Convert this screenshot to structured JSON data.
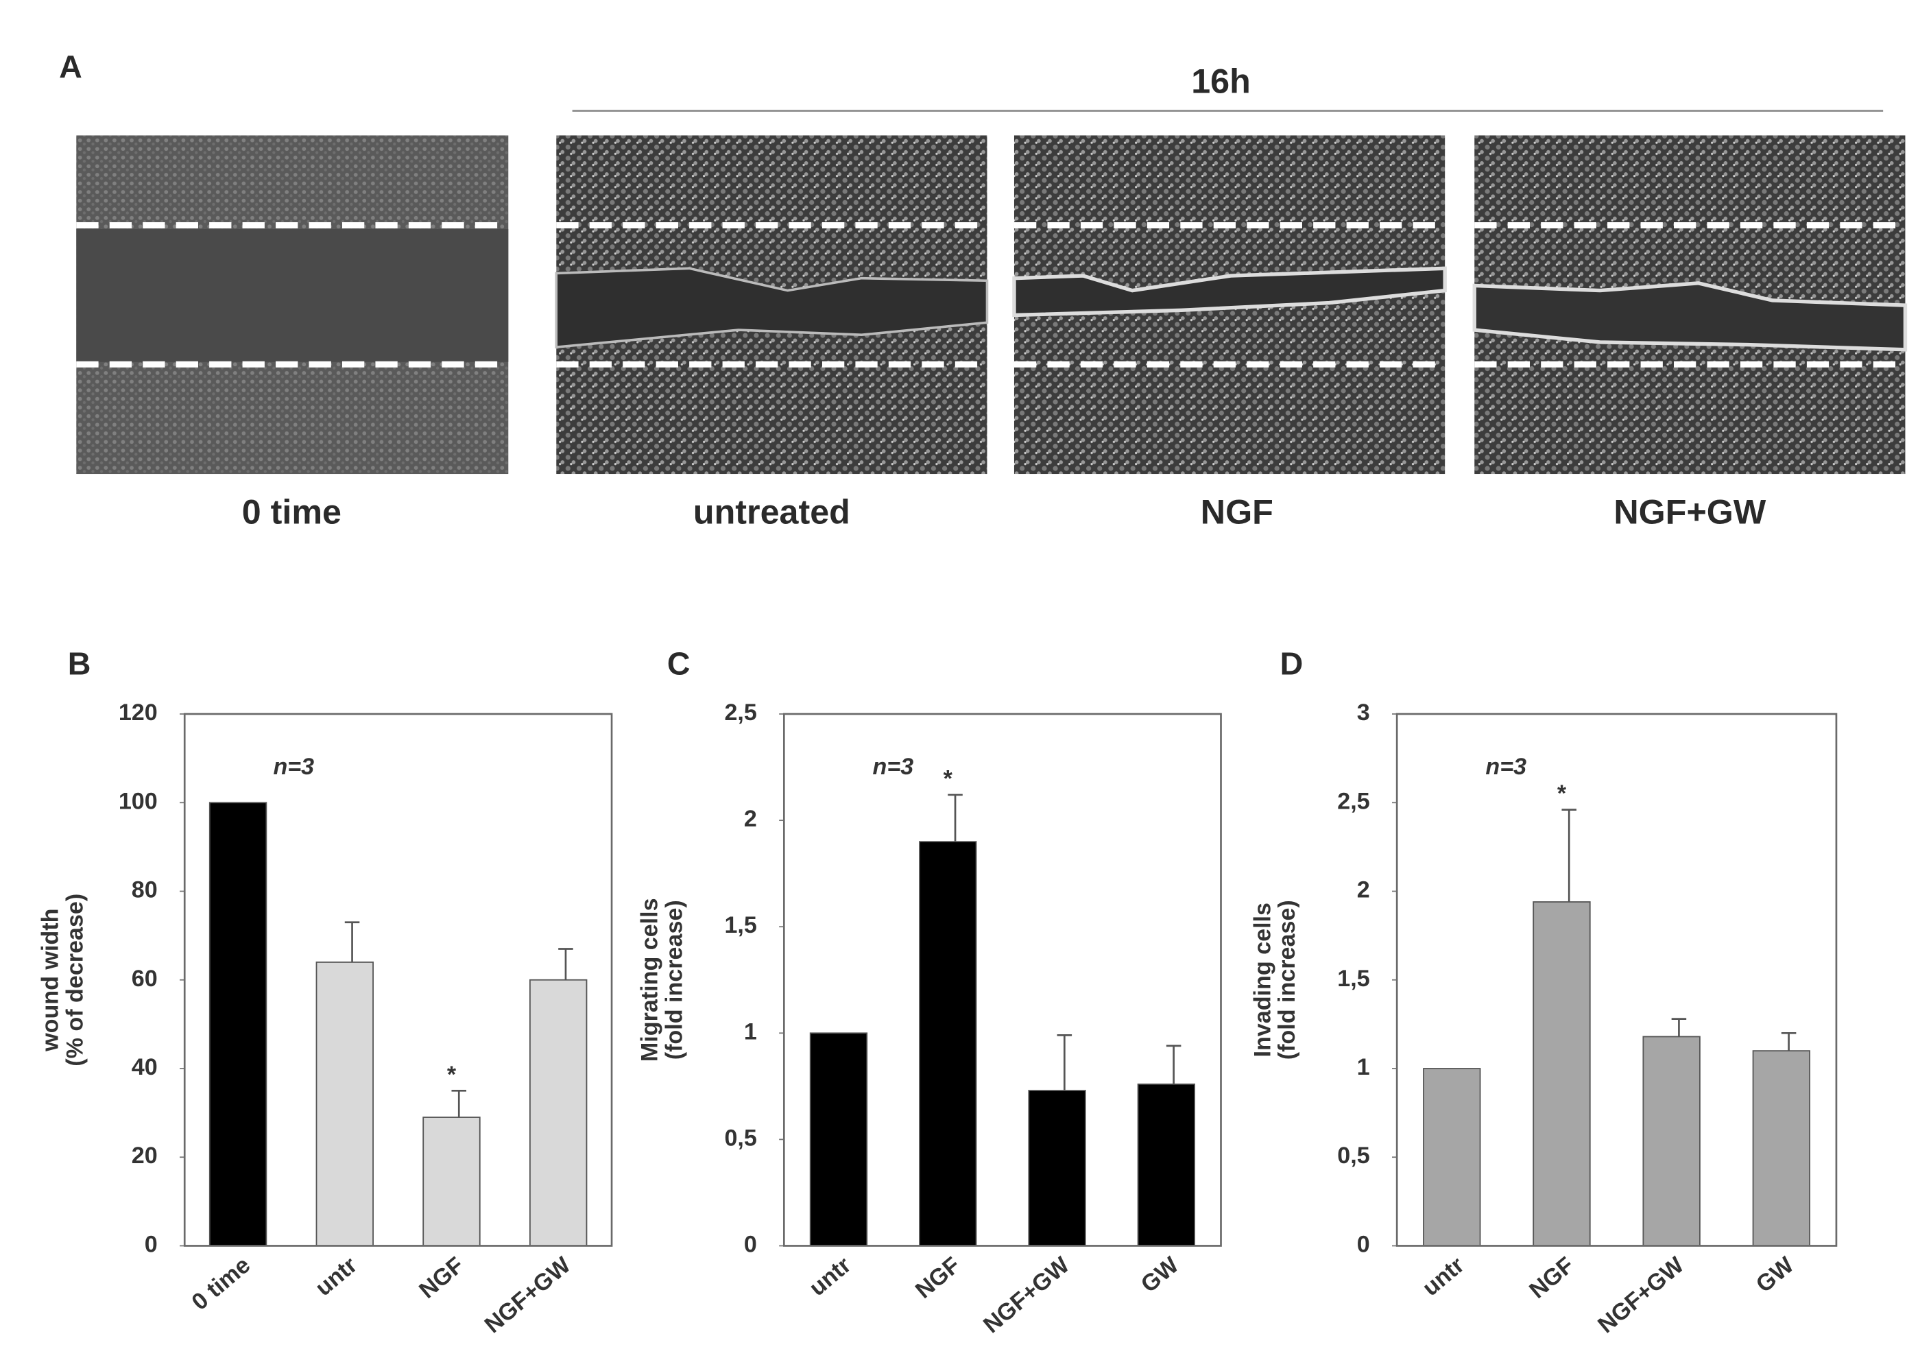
{
  "panel_a": {
    "panel": "A",
    "time_header": "16h",
    "images": [
      "0 time",
      "untreated",
      "NGF",
      "NGF+GW"
    ]
  },
  "chart_data": [
    {
      "type": "bar",
      "panel": "B",
      "ylabel": [
        "wound width",
        "(%  of decrease)"
      ],
      "annotation": "n=3",
      "categories": [
        "0 time",
        "untr",
        "NGF",
        "NGF+GW"
      ],
      "values": [
        100,
        64,
        29,
        60
      ],
      "errors": [
        null,
        9,
        6,
        7
      ],
      "significance": [
        null,
        null,
        "*",
        null
      ],
      "colors": [
        "#000000",
        "#d9d9d9",
        "#d9d9d9",
        "#d9d9d9"
      ],
      "ylim": [
        0,
        120
      ],
      "yticks": [
        0,
        20,
        40,
        60,
        80,
        100,
        120
      ],
      "grid": false
    },
    {
      "type": "bar",
      "panel": "C",
      "ylabel": [
        "Migrating cells",
        "(fold increase)"
      ],
      "annotation": "n=3",
      "categories": [
        "untr",
        "NGF",
        "NGF+GW",
        "GW"
      ],
      "values": [
        1,
        1.9,
        0.73,
        0.76
      ],
      "errors": [
        null,
        0.22,
        0.26,
        0.18
      ],
      "significance": [
        null,
        "*",
        null,
        null
      ],
      "colors": [
        "#000000",
        "#000000",
        "#000000",
        "#000000"
      ],
      "ylim": [
        0,
        2.5
      ],
      "yticks": [
        0,
        {
          "value": 0.5,
          "label": "0,5"
        },
        1,
        {
          "value": 1.5,
          "label": "1,5"
        },
        2,
        {
          "value": 2.5,
          "label": "2,5"
        }
      ],
      "grid": false
    },
    {
      "type": "bar",
      "panel": "D",
      "ylabel": [
        "Invading cells",
        "(fold increase)"
      ],
      "annotation": "n=3",
      "categories": [
        "untr",
        "NGF",
        "NGF+GW",
        "GW"
      ],
      "values": [
        1,
        1.94,
        1.18,
        1.1
      ],
      "errors": [
        null,
        0.52,
        0.1,
        0.1
      ],
      "significance": [
        null,
        "*",
        null,
        null
      ],
      "colors": [
        "#a6a6a6",
        "#a6a6a6",
        "#a6a6a6",
        "#a6a6a6"
      ],
      "ylim": [
        0,
        3
      ],
      "yticks": [
        0,
        {
          "value": 0.5,
          "label": "0,5"
        },
        1,
        {
          "value": 1.5,
          "label": "1,5"
        },
        2,
        {
          "value": 2.5,
          "label": "2,5"
        },
        3
      ],
      "grid": false
    }
  ]
}
